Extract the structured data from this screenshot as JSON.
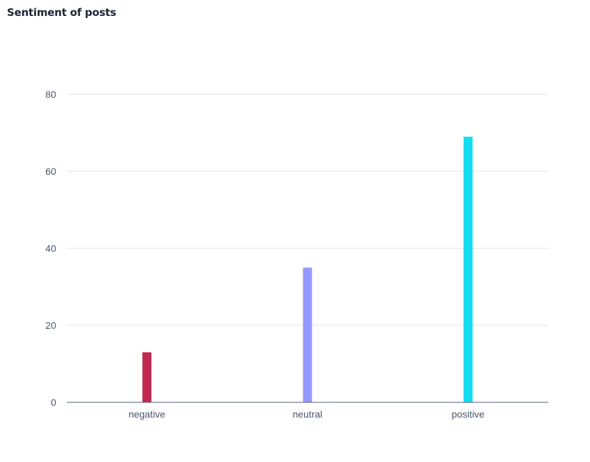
{
  "chart_data": {
    "type": "bar",
    "title": "Sentiment of posts",
    "categories": [
      "negative",
      "neutral",
      "positive"
    ],
    "values": [
      13,
      35,
      69
    ],
    "colors": [
      "#c0294f",
      "#9499fb",
      "#16dcef"
    ],
    "yticks": [
      "0",
      "20",
      "40",
      "60",
      "80"
    ],
    "ylim": [
      0,
      80
    ],
    "grid": true,
    "legend": "none",
    "xlabel": "",
    "ylabel": ""
  },
  "style": {
    "grid_color": "#dde1e6",
    "axis_color": "#4b5b78"
  }
}
